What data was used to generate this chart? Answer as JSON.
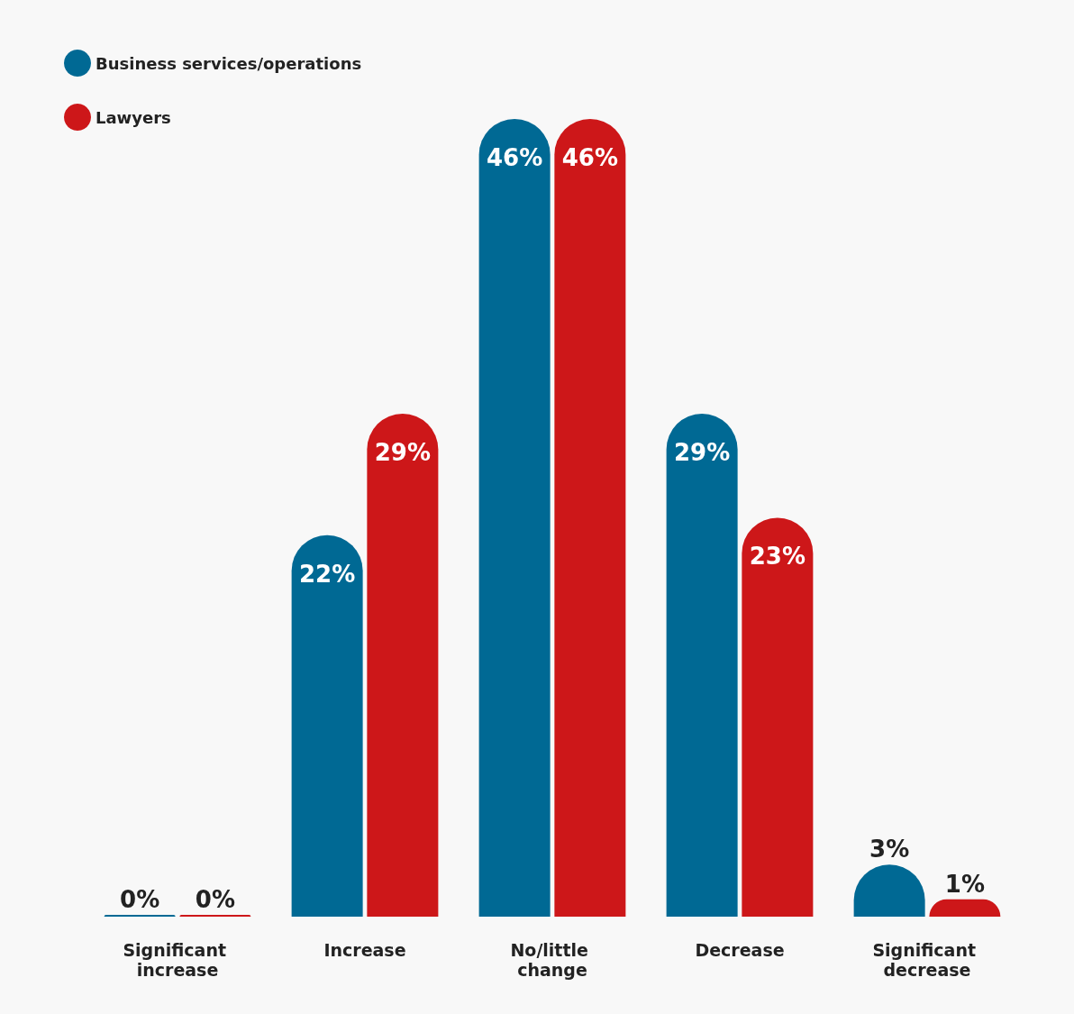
{
  "chart_data": {
    "type": "bar",
    "categories": [
      "Significant increase",
      "Increase",
      "No/little change",
      "Decrease",
      "Significant decrease"
    ],
    "series": [
      {
        "name": "Business services/operations",
        "color": "#006994",
        "values": [
          0,
          22,
          46,
          29,
          3
        ],
        "value_labels": [
          "0%",
          "22%",
          "46%",
          "29%",
          "3%"
        ]
      },
      {
        "name": "Lawyers",
        "color": "#cd1719",
        "values": [
          0,
          29,
          46,
          23,
          1
        ],
        "value_labels": [
          "0%",
          "29%",
          "46%",
          "23%",
          "1%"
        ]
      }
    ],
    "legend": "top left"
  }
}
